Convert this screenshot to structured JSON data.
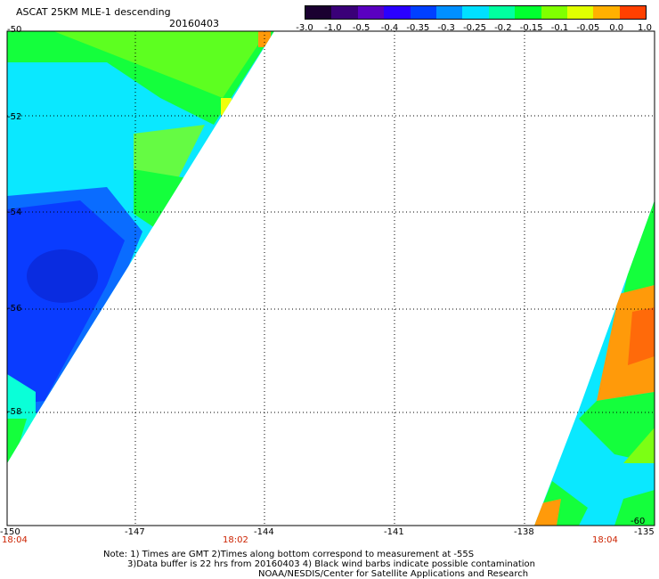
{
  "header": {
    "title": "ASCAT 25KM MLE-1 descending",
    "date": "20160403"
  },
  "colorbar": {
    "labels": [
      "-3.0",
      "-1.0",
      "-0.5",
      "-0.4",
      "-0.35",
      "-0.3",
      "-0.25",
      "-0.2",
      "-0.15",
      "-0.1",
      "-0.05",
      "0.0",
      "1.0"
    ],
    "colors": [
      "#1a0030",
      "#3a0078",
      "#5a00c0",
      "#2a00ff",
      "#0040ff",
      "#0090ff",
      "#00e0ff",
      "#00ffa0",
      "#00ff30",
      "#80ff00",
      "#e0ff00",
      "#ffb000",
      "#ff4000"
    ]
  },
  "axes": {
    "lon_labels": [
      "-150",
      "-147",
      "-144",
      "-141",
      "-138",
      "-135"
    ],
    "lat_labels": [
      "-50",
      "-52",
      "-54",
      "-56",
      "-58",
      "-60"
    ]
  },
  "times": {
    "left": "18:04",
    "middle": "18:02",
    "right": "18:04"
  },
  "notes": {
    "line1": "Note: 1) Times are GMT 2)Times along bottom correspond to measurement at -55S",
    "line2": "3)Data buffer is 22 hrs from 20160403 4) Black wind barbs indicate possible contamination",
    "line3": "NOAA/NESDIS/Center for Satellite Applications and Research"
  },
  "map_colors": {
    "deep_blue": "#0a3cff",
    "blue": "#0a6cff",
    "cyan": "#0ae8ff",
    "aqua": "#0affd8",
    "green": "#14ff3c",
    "lime": "#7cff14",
    "yellow": "#f0ff0a",
    "orange": "#ff9a0a",
    "red_orange": "#ff6a0a"
  }
}
